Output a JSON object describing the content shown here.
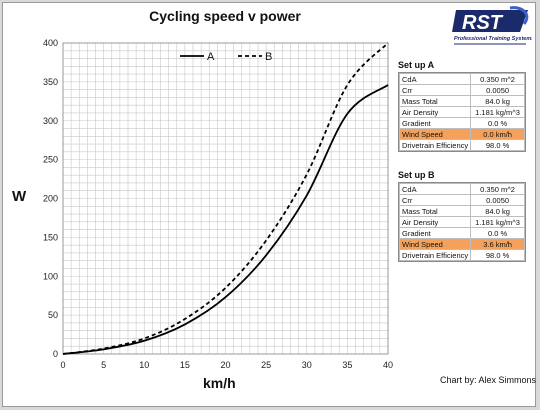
{
  "chart_data": {
    "type": "line",
    "title": "Cycling speed v power",
    "xlabel": "km/h",
    "ylabel": "W",
    "xlim": [
      0,
      40
    ],
    "ylim": [
      0,
      400
    ],
    "x_ticks": [
      "0",
      "5",
      "10",
      "15",
      "20",
      "25",
      "30",
      "35",
      "40"
    ],
    "y_ticks": [
      "0",
      "50",
      "100",
      "150",
      "200",
      "250",
      "300",
      "350",
      "400"
    ],
    "grid": true,
    "legend_position": "top-center",
    "x": [
      0,
      5,
      10,
      15,
      20,
      25,
      30,
      35,
      40
    ],
    "series": [
      {
        "name": "A",
        "style": "solid",
        "color": "#000000",
        "values": [
          0,
          6,
          17,
          38,
          73,
          127,
          204,
          309,
          346
        ]
      },
      {
        "name": "B",
        "style": "dashed",
        "color": "#000000",
        "values": [
          0,
          7,
          20,
          45,
          85,
          146,
          231,
          346,
          400
        ]
      }
    ]
  },
  "setup_a": {
    "title": "Set up A",
    "rows": [
      {
        "label": "CdA",
        "value": "0.350 m^2",
        "highlight": false
      },
      {
        "label": "Crr",
        "value": "0.0050",
        "highlight": false
      },
      {
        "label": "Mass Total",
        "value": "84.0 kg",
        "highlight": false
      },
      {
        "label": "Air Density",
        "value": "1.181 kg/m^3",
        "highlight": false
      },
      {
        "label": "Gradient",
        "value": "0.0 %",
        "highlight": false
      },
      {
        "label": "Wind Speed",
        "value": "0.0 km/h",
        "highlight": true
      },
      {
        "label": "Drivetrain Efficiency",
        "value": "98.0 %",
        "highlight": false
      }
    ]
  },
  "setup_b": {
    "title": "Set up B",
    "rows": [
      {
        "label": "CdA",
        "value": "0.350 m^2",
        "highlight": false
      },
      {
        "label": "Crr",
        "value": "0.0050",
        "highlight": false
      },
      {
        "label": "Mass Total",
        "value": "84.0 kg",
        "highlight": false
      },
      {
        "label": "Air Density",
        "value": "1.181 kg/m^3",
        "highlight": false
      },
      {
        "label": "Gradient",
        "value": "0.0 %",
        "highlight": false
      },
      {
        "label": "Wind Speed",
        "value": "3.6 km/h",
        "highlight": true
      },
      {
        "label": "Drivetrain Efficiency",
        "value": "98.0 %",
        "highlight": false
      }
    ]
  },
  "logo": {
    "text": "RST",
    "tagline": "Professional Training Systems",
    "colors": {
      "primary": "#1b2a6b",
      "accent": "#3a63c9"
    }
  },
  "credit": "Chart by: Alex Simmons",
  "colors": {
    "highlight": "#f4a25b",
    "grid": "#c8c8c8"
  }
}
